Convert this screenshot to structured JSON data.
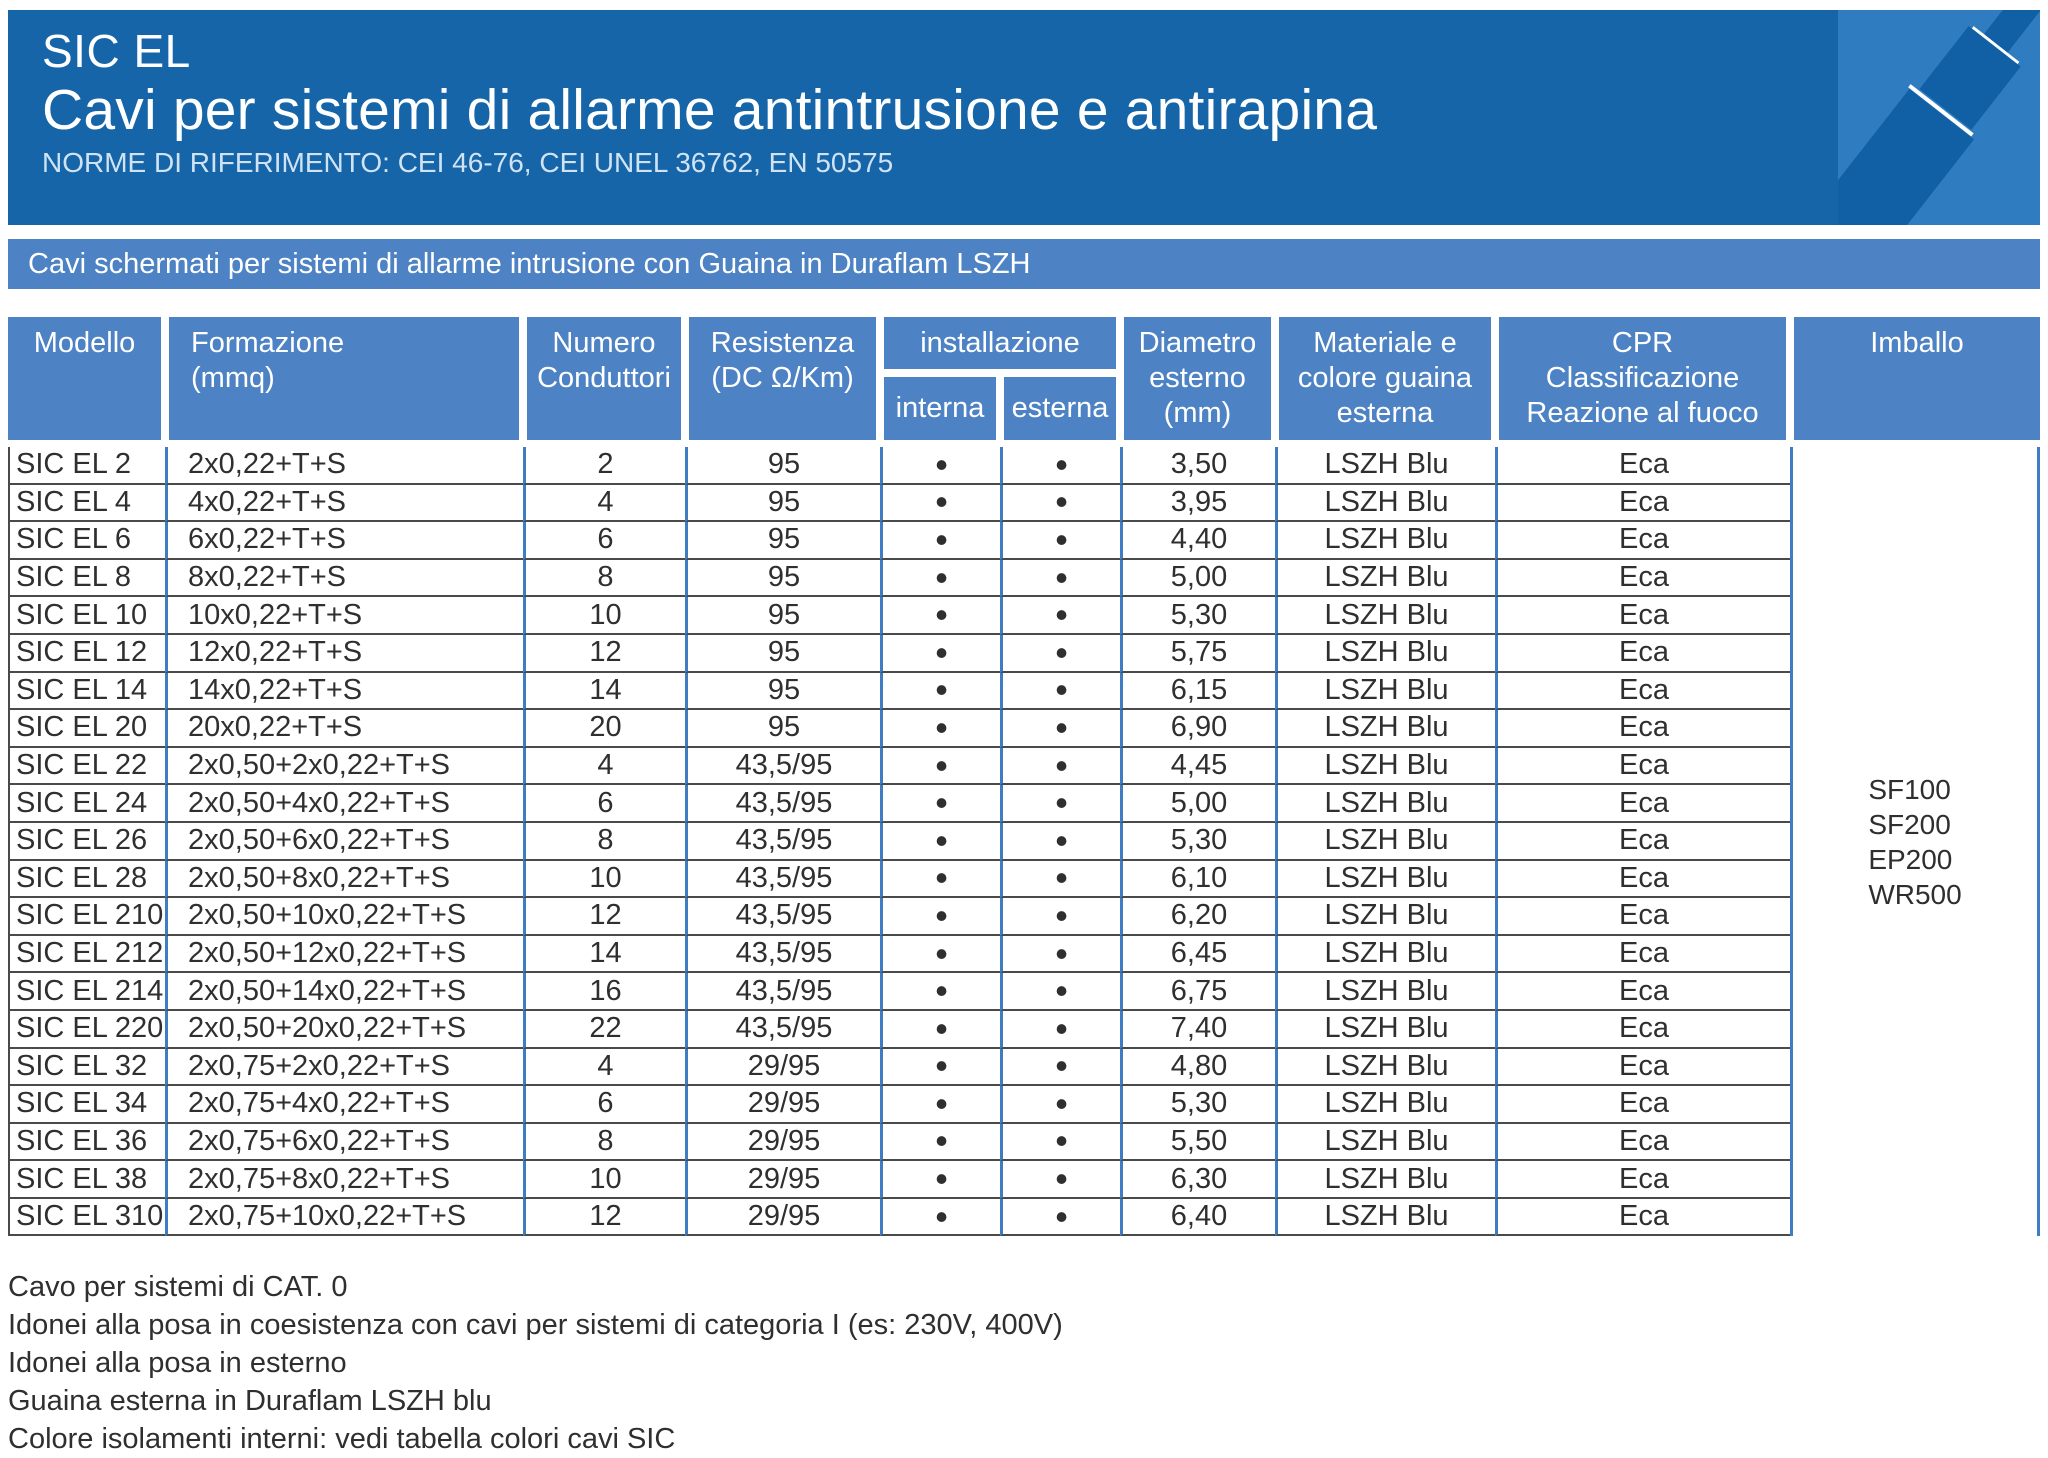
{
  "colors": {
    "header_blue": "#1565a8",
    "band_blue": "#4d82c4",
    "grid_line_blue": "#3e7dc1",
    "graphic_bg_blue": "#2f7cc0",
    "row_line_gray": "#4a4a4a"
  },
  "header": {
    "product": "SIC EL",
    "title": "Cavi per sistemi di allarme antintrusione e antirapina",
    "norms": "NORME DI RIFERIMENTO: CEI 46-76, CEI UNEL 36762, EN 50575"
  },
  "section_band": "Cavi schermati per sistemi di allarme intrusione con Guaina in Duraflam LSZH",
  "table": {
    "headers": {
      "modello": "Modello",
      "formazione": "Formazione\n(mmq)",
      "conduttori": "Numero\nConduttori",
      "resistenza": "Resistenza\n(DC Ω/Km)",
      "installazione": "installazione",
      "interna": "interna",
      "esterna": "esterna",
      "diametro": "Diametro\nesterno\n(mm)",
      "guaina": "Materiale e\ncolore guaina\nesterna",
      "cpr": "CPR\nClassificazione\nReazione al fuoco",
      "imballo": "Imballo"
    },
    "bullet": "•",
    "rows": [
      {
        "modello": "SIC EL 2",
        "formazione": "2x0,22+T+S",
        "conduttori": "2",
        "resistenza": "95",
        "interna": true,
        "esterna": true,
        "diametro": "3,50",
        "guaina": "LSZH Blu",
        "cpr": "Eca"
      },
      {
        "modello": "SIC EL 4",
        "formazione": "4x0,22+T+S",
        "conduttori": "4",
        "resistenza": "95",
        "interna": true,
        "esterna": true,
        "diametro": "3,95",
        "guaina": "LSZH Blu",
        "cpr": "Eca"
      },
      {
        "modello": "SIC EL 6",
        "formazione": "6x0,22+T+S",
        "conduttori": "6",
        "resistenza": "95",
        "interna": true,
        "esterna": true,
        "diametro": "4,40",
        "guaina": "LSZH Blu",
        "cpr": "Eca"
      },
      {
        "modello": "SIC EL 8",
        "formazione": "8x0,22+T+S",
        "conduttori": "8",
        "resistenza": "95",
        "interna": true,
        "esterna": true,
        "diametro": "5,00",
        "guaina": "LSZH Blu",
        "cpr": "Eca"
      },
      {
        "modello": "SIC EL 10",
        "formazione": "10x0,22+T+S",
        "conduttori": "10",
        "resistenza": "95",
        "interna": true,
        "esterna": true,
        "diametro": "5,30",
        "guaina": "LSZH Blu",
        "cpr": "Eca"
      },
      {
        "modello": "SIC EL 12",
        "formazione": "12x0,22+T+S",
        "conduttori": "12",
        "resistenza": "95",
        "interna": true,
        "esterna": true,
        "diametro": "5,75",
        "guaina": "LSZH Blu",
        "cpr": "Eca"
      },
      {
        "modello": "SIC EL 14",
        "formazione": "14x0,22+T+S",
        "conduttori": "14",
        "resistenza": "95",
        "interna": true,
        "esterna": true,
        "diametro": "6,15",
        "guaina": "LSZH Blu",
        "cpr": "Eca"
      },
      {
        "modello": "SIC EL 20",
        "formazione": "20x0,22+T+S",
        "conduttori": "20",
        "resistenza": "95",
        "interna": true,
        "esterna": true,
        "diametro": "6,90",
        "guaina": "LSZH Blu",
        "cpr": "Eca"
      },
      {
        "modello": "SIC EL 22",
        "formazione": "2x0,50+2x0,22+T+S",
        "conduttori": "4",
        "resistenza": "43,5/95",
        "interna": true,
        "esterna": true,
        "diametro": "4,45",
        "guaina": "LSZH Blu",
        "cpr": "Eca"
      },
      {
        "modello": "SIC EL 24",
        "formazione": "2x0,50+4x0,22+T+S",
        "conduttori": "6",
        "resistenza": "43,5/95",
        "interna": true,
        "esterna": true,
        "diametro": "5,00",
        "guaina": "LSZH Blu",
        "cpr": "Eca"
      },
      {
        "modello": "SIC EL 26",
        "formazione": "2x0,50+6x0,22+T+S",
        "conduttori": "8",
        "resistenza": "43,5/95",
        "interna": true,
        "esterna": true,
        "diametro": "5,30",
        "guaina": "LSZH Blu",
        "cpr": "Eca"
      },
      {
        "modello": "SIC EL 28",
        "formazione": "2x0,50+8x0,22+T+S",
        "conduttori": "10",
        "resistenza": "43,5/95",
        "interna": true,
        "esterna": true,
        "diametro": "6,10",
        "guaina": "LSZH Blu",
        "cpr": "Eca"
      },
      {
        "modello": "SIC EL 210",
        "formazione": "2x0,50+10x0,22+T+S",
        "conduttori": "12",
        "resistenza": "43,5/95",
        "interna": true,
        "esterna": true,
        "diametro": "6,20",
        "guaina": "LSZH Blu",
        "cpr": "Eca"
      },
      {
        "modello": "SIC EL 212",
        "formazione": "2x0,50+12x0,22+T+S",
        "conduttori": "14",
        "resistenza": "43,5/95",
        "interna": true,
        "esterna": true,
        "diametro": "6,45",
        "guaina": "LSZH Blu",
        "cpr": "Eca"
      },
      {
        "modello": "SIC EL 214",
        "formazione": "2x0,50+14x0,22+T+S",
        "conduttori": "16",
        "resistenza": "43,5/95",
        "interna": true,
        "esterna": true,
        "diametro": "6,75",
        "guaina": "LSZH Blu",
        "cpr": "Eca"
      },
      {
        "modello": "SIC EL 220",
        "formazione": "2x0,50+20x0,22+T+S",
        "conduttori": "22",
        "resistenza": "43,5/95",
        "interna": true,
        "esterna": true,
        "diametro": "7,40",
        "guaina": "LSZH Blu",
        "cpr": "Eca"
      },
      {
        "modello": "SIC EL 32",
        "formazione": "2x0,75+2x0,22+T+S",
        "conduttori": "4",
        "resistenza": "29/95",
        "interna": true,
        "esterna": true,
        "diametro": "4,80",
        "guaina": "LSZH Blu",
        "cpr": "Eca"
      },
      {
        "modello": "SIC EL 34",
        "formazione": "2x0,75+4x0,22+T+S",
        "conduttori": "6",
        "resistenza": "29/95",
        "interna": true,
        "esterna": true,
        "diametro": "5,30",
        "guaina": "LSZH Blu",
        "cpr": "Eca"
      },
      {
        "modello": "SIC EL 36",
        "formazione": "2x0,75+6x0,22+T+S",
        "conduttori": "8",
        "resistenza": "29/95",
        "interna": true,
        "esterna": true,
        "diametro": "5,50",
        "guaina": "LSZH Blu",
        "cpr": "Eca"
      },
      {
        "modello": "SIC EL 38",
        "formazione": "2x0,75+8x0,22+T+S",
        "conduttori": "10",
        "resistenza": "29/95",
        "interna": true,
        "esterna": true,
        "diametro": "6,30",
        "guaina": "LSZH Blu",
        "cpr": "Eca"
      },
      {
        "modello": "SIC EL 310",
        "formazione": "2x0,75+10x0,22+T+S",
        "conduttori": "12",
        "resistenza": "29/95",
        "interna": true,
        "esterna": true,
        "diametro": "6,40",
        "guaina": "LSZH Blu",
        "cpr": "Eca"
      }
    ],
    "imballo_options": [
      "SF100",
      "SF200",
      "EP200",
      "WR500"
    ]
  },
  "footnotes": [
    "Cavo per sistemi di CAT. 0",
    "Idonei alla posa in coesistenza con cavi per sistemi di categoria I (es: 230V, 400V)",
    "Idonei alla posa in esterno",
    "Guaina esterna in Duraflam LSZH blu",
    "Colore isolamenti interni: vedi tabella colori cavi SIC"
  ]
}
